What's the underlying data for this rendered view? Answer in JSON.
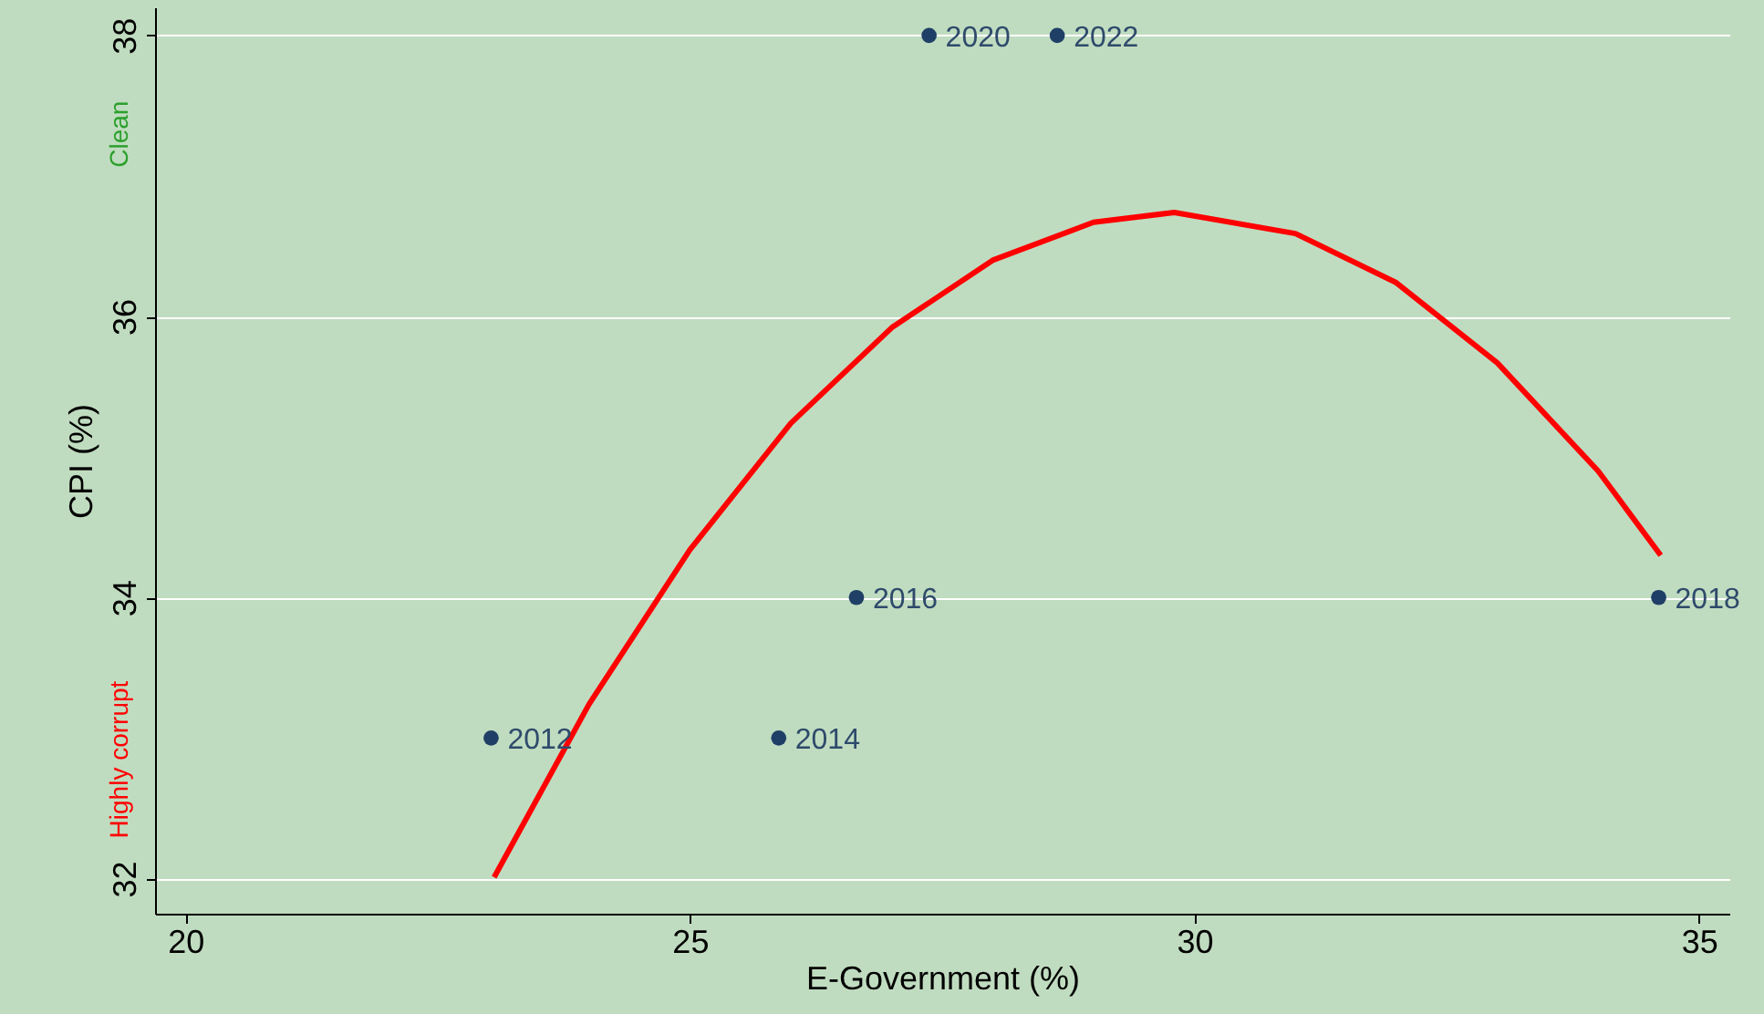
{
  "chart_data": {
    "type": "scatter",
    "xlabel": "E-Government (%)",
    "ylabel": "CPI (%)",
    "xlim": [
      19.7,
      35.3
    ],
    "xticks": [
      20,
      25,
      30,
      35
    ],
    "ylim": [
      31.75,
      38.2
    ],
    "yticks": [
      32,
      34,
      36,
      38
    ],
    "grid": "y",
    "legend": false,
    "series": [
      {
        "marker": "circle",
        "color": "#1f3f66",
        "x": [
          23.03,
          25.88,
          26.65,
          34.6,
          27.37,
          28.64
        ],
        "values": [
          33,
          33,
          34,
          34,
          38,
          38
        ]
      },
      {
        "type": "line",
        "color": "#ff0000",
        "line_style": "solid",
        "x": [
          23.06,
          24,
          25,
          26,
          27,
          28,
          29,
          29.8,
          31,
          32,
          33,
          34,
          34.62
        ],
        "values": [
          32.01,
          33.24,
          34.34,
          35.24,
          35.92,
          36.4,
          36.67,
          36.74,
          36.59,
          36.24,
          35.67,
          34.9,
          34.3
        ]
      }
    ],
    "annotations": [
      {
        "text": "2012",
        "x": 23.03,
        "y": 33
      },
      {
        "text": "2014",
        "x": 25.88,
        "y": 33
      },
      {
        "text": "2016",
        "x": 26.65,
        "y": 34
      },
      {
        "text": "2018",
        "x": 34.6,
        "y": 34
      },
      {
        "text": "2020",
        "x": 27.37,
        "y": 38
      },
      {
        "text": "2022",
        "x": 28.64,
        "y": 38
      },
      "Clean",
      "Highly corrupt"
    ]
  }
}
